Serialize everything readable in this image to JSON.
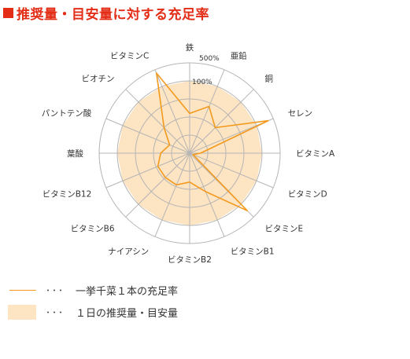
{
  "title": "推奨量・目安量に対する充足率",
  "colors": {
    "title": "#e32d17",
    "line": "#f39a1e",
    "area": "#fde4c2",
    "grid": "#b5b5b5"
  },
  "legend": {
    "line_label": "一挙千菜１本の充足率",
    "area_label": "１日の推奨量・目安量",
    "dots": "･･･"
  },
  "chart_data": {
    "type": "radar",
    "title": "推奨量・目安量に対する充足率",
    "scale_labels": [
      "100%",
      "500%"
    ],
    "scale_max_percent": 500,
    "rings": 5,
    "axes": [
      "鉄",
      "亜鉛",
      "銅",
      "セレン",
      "ビタミンA",
      "ビタミンD",
      "ビタミンE",
      "ビタミンB1",
      "ビタミンB2",
      "ナイアシン",
      "ビタミンB6",
      "ビタミンB12",
      "葉酸",
      "パントテン酸",
      "ビオチン",
      "ビタミンC"
    ],
    "series": [
      {
        "name": "一挙千菜１本の充足率",
        "values": [
          220,
          280,
          200,
          470,
          60,
          20,
          450,
          230,
          160,
          190,
          190,
          190,
          160,
          120,
          200,
          480
        ]
      },
      {
        "name": "１日の推奨量・目安量",
        "values": [
          400,
          400,
          400,
          400,
          400,
          400,
          400,
          400,
          400,
          400,
          400,
          400,
          400,
          400,
          400,
          400
        ]
      }
    ]
  }
}
